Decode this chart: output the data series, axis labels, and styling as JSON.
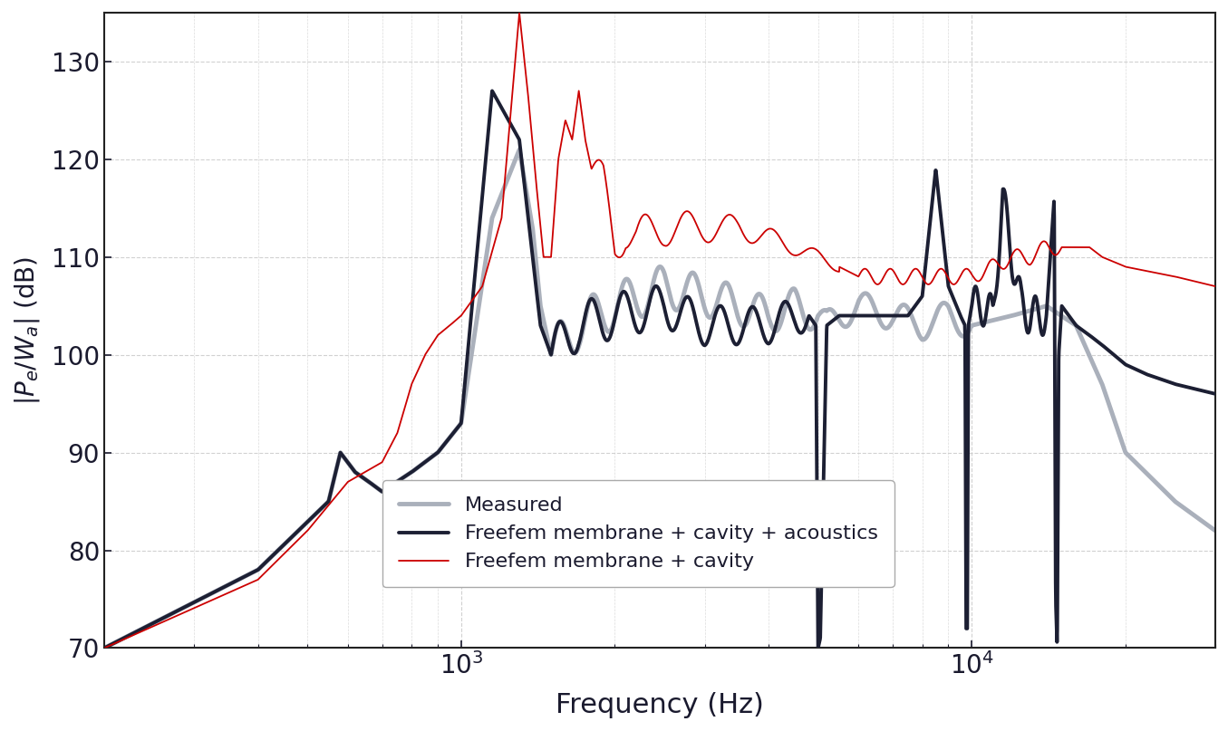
{
  "xlabel": "Frequency (Hz)",
  "ylabel": "$|P_e/W_a|$ (dB)",
  "xlim": [
    200,
    30000
  ],
  "ylim": [
    70,
    135
  ],
  "yticks": [
    70,
    80,
    90,
    100,
    110,
    120,
    130
  ],
  "legend_entries": [
    "Measured",
    "Freefem membrane + cavity + acoustics",
    "Freefem membrane + cavity"
  ],
  "colors": {
    "measured": "#aab0bb",
    "freefem_full": "#1c1f33",
    "freefem_cavity": "#cc0000"
  },
  "linewidths": {
    "measured": 3.5,
    "freefem_full": 2.8,
    "freefem_cavity": 1.3
  },
  "background_color": "#ffffff",
  "grid_color": "#cccccc"
}
